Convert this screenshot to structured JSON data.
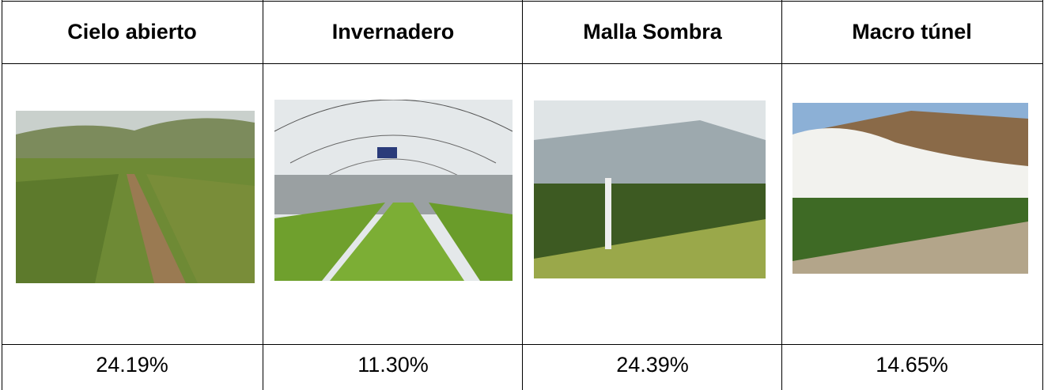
{
  "table": {
    "header": [
      "Cielo abierto",
      "Invernadero",
      "Malla Sombra",
      "Macro túnel"
    ],
    "rows": [
      [
        "24.19%",
        "11.30%",
        "24.39%",
        "14.65%"
      ]
    ]
  }
}
